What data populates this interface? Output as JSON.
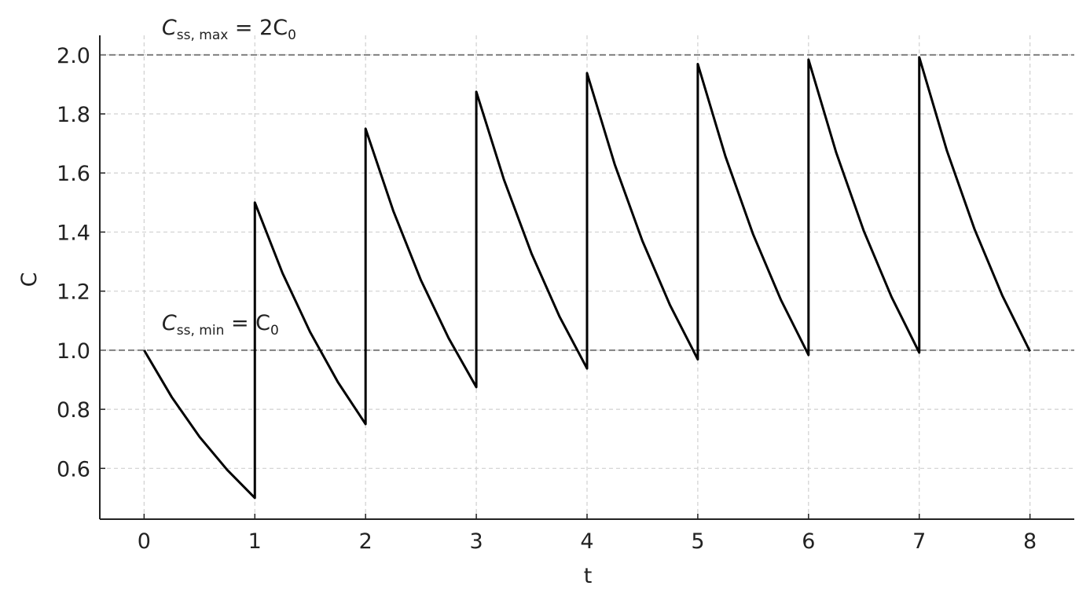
{
  "chart_data": {
    "type": "line",
    "xlabel": "t",
    "ylabel": "C",
    "x": [
      0,
      0.25,
      0.5,
      0.75,
      1,
      1,
      1.25,
      1.5,
      1.75,
      2,
      2,
      2.25,
      2.5,
      2.75,
      3,
      3,
      3.25,
      3.5,
      3.75,
      4,
      4,
      4.25,
      4.5,
      4.75,
      5,
      5,
      5.25,
      5.5,
      5.75,
      6,
      6,
      6.25,
      6.5,
      6.75,
      7,
      7,
      7.25,
      7.5,
      7.75,
      8
    ],
    "values": [
      1,
      0.841,
      0.707,
      0.595,
      0.5,
      1.5,
      1.261,
      1.061,
      0.892,
      0.75,
      1.75,
      1.472,
      1.237,
      1.041,
      0.875,
      1.875,
      1.577,
      1.326,
      1.115,
      0.938,
      1.938,
      1.629,
      1.37,
      1.152,
      0.969,
      1.969,
      1.656,
      1.392,
      1.171,
      0.984,
      1.984,
      1.669,
      1.403,
      1.18,
      0.992,
      1.992,
      1.675,
      1.409,
      1.185,
      0.996
    ],
    "color": "#000000",
    "hlines": [
      {
        "value": 2,
        "label": [
          "C",
          "ss, max",
          " = 2C",
          "0"
        ]
      },
      {
        "value": 1,
        "label": [
          "C",
          "ss, min",
          " = C",
          "0"
        ]
      }
    ],
    "xlim": [
      -0.4,
      8.4
    ],
    "xticks": [
      0,
      1,
      2,
      3,
      4,
      5,
      6,
      7,
      8
    ],
    "ylim": [
      0.428,
      2.066
    ],
    "yticks": [
      {
        "value": 0.6,
        "label": "0.6"
      },
      {
        "value": 0.8,
        "label": "0.8"
      },
      {
        "value": 1.0,
        "label": "1.0"
      },
      {
        "value": 1.2,
        "label": "1.2"
      },
      {
        "value": 1.4,
        "label": "1.4"
      },
      {
        "value": 1.6,
        "label": "1.6"
      },
      {
        "value": 1.8,
        "label": "1.8"
      },
      {
        "value": 2.0,
        "label": "2.0"
      }
    ],
    "grid": true
  }
}
